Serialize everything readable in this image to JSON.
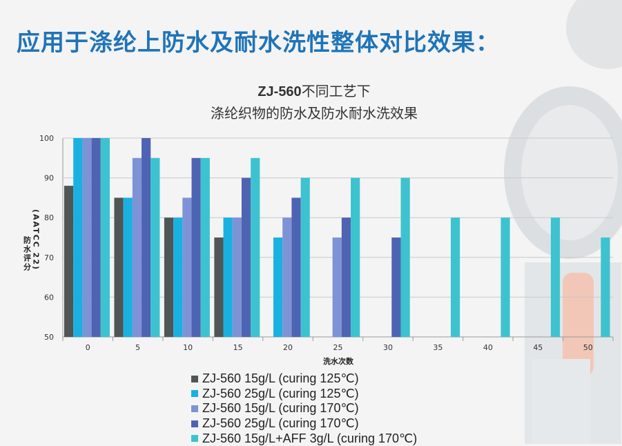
{
  "headline": "应用于涤纶上防水及耐水洗性整体对比效果：",
  "chart_data": {
    "type": "bar",
    "title_bold": "ZJ-560",
    "title_rest": "不同工艺下",
    "subtitle": "涤纶织物的防水及防水耐水洗效果",
    "xlabel": "洗水次数",
    "ylabel_lines": [
      "防水评分",
      "(AATCC 22)"
    ],
    "ylim": [
      50,
      100
    ],
    "yticks": [
      50,
      60,
      70,
      80,
      90,
      100
    ],
    "categories": [
      "0",
      "5",
      "10",
      "15",
      "20",
      "25",
      "30",
      "35",
      "40",
      "45",
      "50"
    ],
    "series": [
      {
        "name": "ZJ-560  15g/L (curing 125℃)",
        "color": "#505556",
        "values": [
          88,
          85,
          80,
          75,
          null,
          null,
          null,
          null,
          null,
          null,
          null
        ]
      },
      {
        "name": "ZJ-560  25g/L (curing 125℃)",
        "color": "#1ab1e1",
        "values": [
          100,
          85,
          80,
          80,
          75,
          null,
          null,
          null,
          null,
          null,
          null
        ]
      },
      {
        "name": "ZJ-560  15g/L (curing 170℃)",
        "color": "#7d93d6",
        "values": [
          100,
          95,
          85,
          80,
          80,
          75,
          null,
          null,
          null,
          null,
          null
        ]
      },
      {
        "name": "ZJ-560  25g/L (curing 170℃)",
        "color": "#4f63b3",
        "values": [
          100,
          100,
          95,
          90,
          85,
          80,
          75,
          null,
          null,
          null,
          null
        ]
      },
      {
        "name": "ZJ-560  15g/L+AFF 3g/L  (curing 170℃)",
        "color": "#3dc3cf",
        "values": [
          100,
          95,
          95,
          95,
          90,
          90,
          90,
          80,
          80,
          80,
          75
        ]
      }
    ]
  }
}
